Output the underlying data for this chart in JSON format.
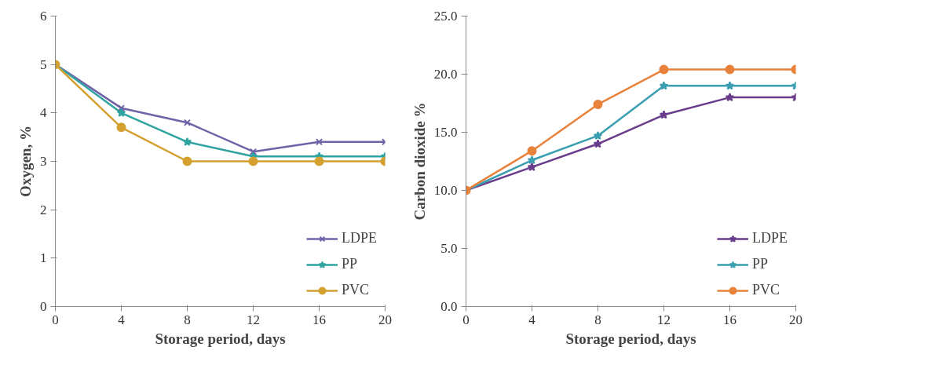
{
  "chart_data": [
    {
      "type": "line",
      "xlabel": "Storage period, days",
      "ylabel": "Oxygen, %",
      "x": [
        0,
        4,
        8,
        12,
        16,
        20
      ],
      "xlim": [
        0,
        20
      ],
      "xticks": [
        0,
        4,
        8,
        12,
        16,
        20
      ],
      "ylim": [
        0,
        6
      ],
      "yticks": [
        0,
        1,
        2,
        3,
        4,
        5,
        6
      ],
      "grid": false,
      "legend": "bottom right",
      "series": [
        {
          "name": "LDPE",
          "color": "#7062a8",
          "marker": "cross",
          "values": [
            5,
            4.1,
            3.8,
            3.2,
            3.4,
            3.4
          ]
        },
        {
          "name": "PP",
          "color": "#2ea3a0",
          "marker": "star",
          "values": [
            5,
            4.0,
            3.4,
            3.1,
            3.1,
            3.1
          ]
        },
        {
          "name": "PVC",
          "color": "#d4a030",
          "marker": "circle",
          "values": [
            5,
            3.7,
            3.0,
            3.0,
            3.0,
            3.0
          ]
        }
      ]
    },
    {
      "type": "line",
      "xlabel": "Storage period, days",
      "ylabel": "Carbon dioxide %",
      "x": [
        0,
        4,
        8,
        12,
        16,
        20
      ],
      "xlim": [
        0,
        20
      ],
      "xticks": [
        0,
        4,
        8,
        12,
        16,
        20
      ],
      "ylim": [
        0,
        25
      ],
      "yticks": [
        {
          "value": 0,
          "label": "0.0"
        },
        {
          "value": 5,
          "label": "5.0"
        },
        {
          "value": 10,
          "label": "10.0"
        },
        {
          "value": 15,
          "label": "15.0"
        },
        {
          "value": 20,
          "label": "20.0"
        },
        {
          "value": 25,
          "label": "25.0"
        }
      ],
      "grid": false,
      "legend": "bottom right",
      "series": [
        {
          "name": "LDPE",
          "color": "#6a3d8c",
          "marker": "star",
          "values": [
            10,
            12.0,
            14.0,
            16.5,
            18.0,
            18.0
          ]
        },
        {
          "name": "PP",
          "color": "#3a9fb0",
          "marker": "star",
          "values": [
            10,
            12.6,
            14.7,
            19.0,
            19.0,
            19.0
          ]
        },
        {
          "name": "PVC",
          "color": "#e8823a",
          "marker": "circle",
          "values": [
            10,
            13.4,
            17.4,
            20.4,
            20.4,
            20.4
          ]
        }
      ]
    }
  ]
}
